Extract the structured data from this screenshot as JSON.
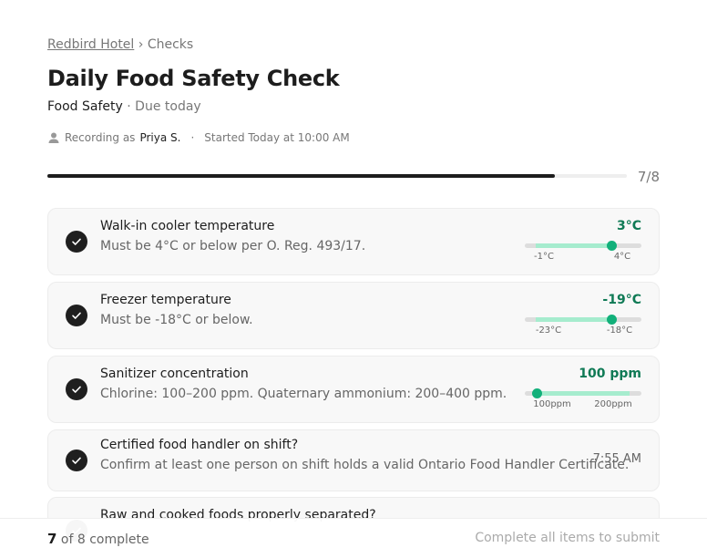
{
  "header": {
    "breadcrumb": {
      "parent": "Redbird Hotel",
      "separator": "›",
      "current": "Checks"
    },
    "title": "Daily Food Safety Check",
    "category": "Food Safety",
    "due": "· Due today",
    "recording_prefix": "Recording as",
    "recorder": "Priya S.",
    "dot": "·",
    "started": "Started Today at 10:00 AM"
  },
  "progress": {
    "done": 7,
    "total": 8,
    "label": "7/8"
  },
  "items": [
    {
      "title": "Walk-in cooler temperature",
      "description": "Must be 4°C or below per O. Reg. 493/17.",
      "reading": "3°C",
      "range_min": "-1°C",
      "range_max": "4°C"
    },
    {
      "title": "Freezer temperature",
      "description": "Must be -18°C or below.",
      "reading": "-19°C",
      "range_min": "-23°C",
      "range_max": "-18°C"
    },
    {
      "title": "Sanitizer concentration",
      "description": "Chlorine: 100–200 ppm. Quaternary ammonium: 200–400 ppm.",
      "reading": "100 ppm",
      "range_min": "100ppm",
      "range_max": "200ppm"
    },
    {
      "title": "Certified food handler on shift?",
      "description": "Confirm at least one person on shift holds a valid Ontario Food Handler Certificate.",
      "time": "7:55 AM"
    },
    {
      "title": "Raw and cooked foods properly separated?"
    }
  ],
  "footer": {
    "count": "7",
    "count_text": "of 8 complete",
    "action": "Complete all items to submit"
  }
}
